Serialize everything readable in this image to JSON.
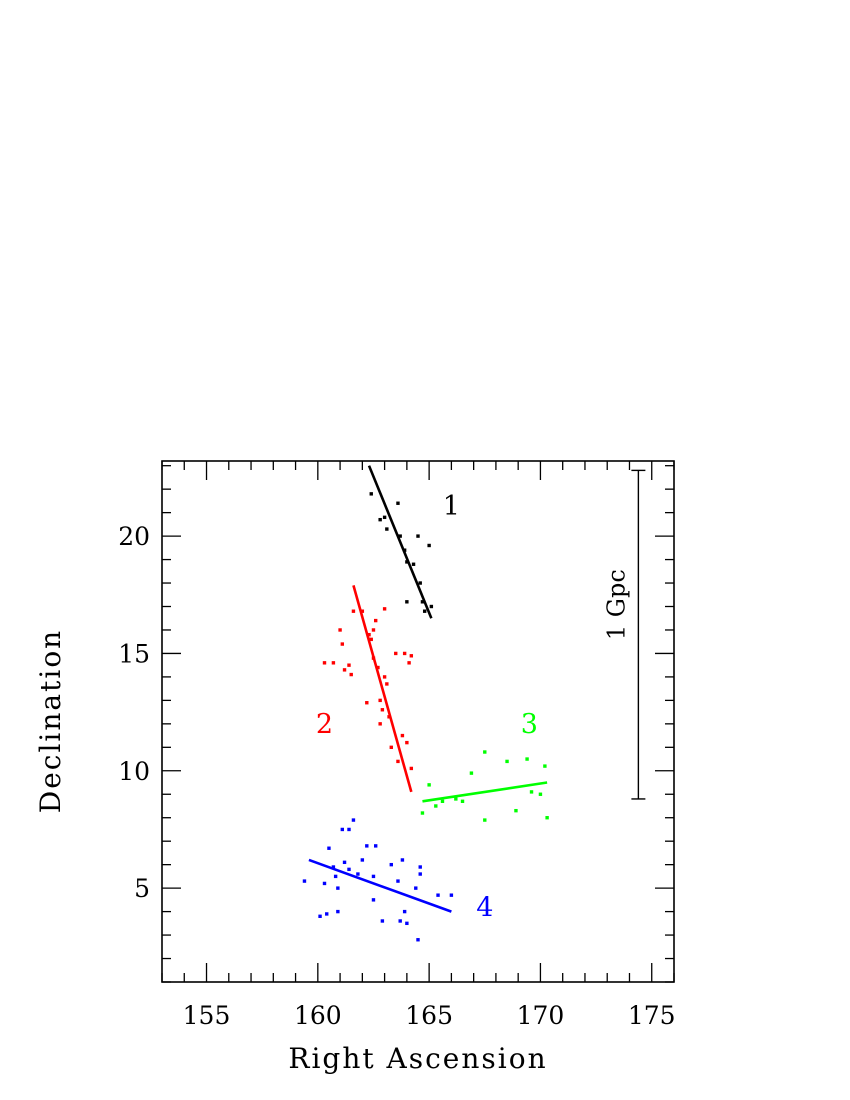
{
  "chart_data": {
    "type": "scatter",
    "xlabel": "Right Ascension",
    "ylabel": "Declination",
    "xlim": [
      153,
      176
    ],
    "ylim": [
      1,
      23.2
    ],
    "x_ticks": [
      155,
      160,
      165,
      170,
      175
    ],
    "y_ticks": [
      5,
      10,
      15,
      20
    ],
    "grid": false,
    "series": [
      {
        "name": "1",
        "color": "#000000",
        "points": [
          [
            162.4,
            21.8
          ],
          [
            162.8,
            20.7
          ],
          [
            163.0,
            20.8
          ],
          [
            163.1,
            20.3
          ],
          [
            163.6,
            21.4
          ],
          [
            163.7,
            20.0
          ],
          [
            163.9,
            19.4
          ],
          [
            164.0,
            18.9
          ],
          [
            164.3,
            18.8
          ],
          [
            164.5,
            20.0
          ],
          [
            164.6,
            18.0
          ],
          [
            164.0,
            17.2
          ],
          [
            164.7,
            17.2
          ],
          [
            164.8,
            16.8
          ],
          [
            165.0,
            19.6
          ],
          [
            165.1,
            17.0
          ]
        ],
        "fit": [
          [
            162.3,
            23.0
          ],
          [
            165.1,
            16.5
          ]
        ],
        "label": "1",
        "label_pos": [
          166.0,
          20.9
        ]
      },
      {
        "name": "2",
        "color": "#ff0000",
        "points": [
          [
            160.3,
            14.6
          ],
          [
            160.7,
            14.6
          ],
          [
            161.0,
            16.0
          ],
          [
            161.1,
            15.4
          ],
          [
            161.2,
            14.3
          ],
          [
            161.4,
            14.5
          ],
          [
            161.5,
            14.1
          ],
          [
            161.6,
            16.8
          ],
          [
            162.0,
            16.8
          ],
          [
            162.2,
            12.9
          ],
          [
            162.3,
            15.8
          ],
          [
            162.4,
            15.6
          ],
          [
            162.5,
            16.0
          ],
          [
            162.6,
            16.4
          ],
          [
            162.7,
            14.4
          ],
          [
            162.8,
            13.0
          ],
          [
            162.8,
            12.0
          ],
          [
            162.9,
            12.6
          ],
          [
            163.0,
            14.0
          ],
          [
            163.0,
            16.9
          ],
          [
            163.1,
            13.7
          ],
          [
            163.2,
            12.3
          ],
          [
            163.3,
            11.0
          ],
          [
            163.5,
            15.0
          ],
          [
            163.6,
            10.4
          ],
          [
            163.8,
            11.5
          ],
          [
            163.9,
            15.0
          ],
          [
            164.0,
            11.2
          ],
          [
            164.1,
            14.6
          ],
          [
            164.2,
            10.1
          ],
          [
            164.2,
            14.9
          ],
          [
            162.5,
            14.8
          ]
        ],
        "fit": [
          [
            161.6,
            17.9
          ],
          [
            164.2,
            9.1
          ]
        ],
        "label": "2",
        "label_pos": [
          160.3,
          11.6
        ]
      },
      {
        "name": "3",
        "color": "#00ff00",
        "points": [
          [
            164.7,
            8.2
          ],
          [
            165.0,
            9.4
          ],
          [
            165.3,
            8.5
          ],
          [
            165.6,
            8.7
          ],
          [
            166.2,
            8.8
          ],
          [
            166.5,
            8.7
          ],
          [
            166.9,
            9.9
          ],
          [
            167.5,
            10.8
          ],
          [
            167.5,
            7.9
          ],
          [
            168.5,
            10.4
          ],
          [
            168.9,
            8.3
          ],
          [
            169.4,
            10.5
          ],
          [
            169.6,
            9.1
          ],
          [
            170.0,
            9.0
          ],
          [
            170.2,
            10.2
          ],
          [
            170.3,
            8.0
          ]
        ],
        "fit": [
          [
            164.7,
            8.7
          ],
          [
            170.3,
            9.5
          ]
        ],
        "label": "3",
        "label_pos": [
          169.5,
          11.6
        ]
      },
      {
        "name": "4",
        "color": "#0000ff",
        "points": [
          [
            159.4,
            5.3
          ],
          [
            160.1,
            3.8
          ],
          [
            160.3,
            5.2
          ],
          [
            160.4,
            3.9
          ],
          [
            160.5,
            6.7
          ],
          [
            160.7,
            5.9
          ],
          [
            160.8,
            5.5
          ],
          [
            160.9,
            5.0
          ],
          [
            160.9,
            4.0
          ],
          [
            161.1,
            7.5
          ],
          [
            161.2,
            6.1
          ],
          [
            161.4,
            5.8
          ],
          [
            161.4,
            7.5
          ],
          [
            161.6,
            7.9
          ],
          [
            161.8,
            5.6
          ],
          [
            162.0,
            6.2
          ],
          [
            162.2,
            6.8
          ],
          [
            162.5,
            5.5
          ],
          [
            162.6,
            6.8
          ],
          [
            162.5,
            4.5
          ],
          [
            162.9,
            3.6
          ],
          [
            163.3,
            6.0
          ],
          [
            163.6,
            5.3
          ],
          [
            163.7,
            3.6
          ],
          [
            163.8,
            6.2
          ],
          [
            163.9,
            4.0
          ],
          [
            164.0,
            3.5
          ],
          [
            164.4,
            5.0
          ],
          [
            164.5,
            2.8
          ],
          [
            164.6,
            5.9
          ],
          [
            164.6,
            5.6
          ],
          [
            165.4,
            4.7
          ],
          [
            166.0,
            4.7
          ]
        ],
        "fit": [
          [
            159.6,
            6.2
          ],
          [
            166.0,
            4.0
          ]
        ],
        "label": "4",
        "label_pos": [
          167.5,
          3.8
        ]
      }
    ],
    "scale_bar": {
      "label": "1 Gpc",
      "x": 174.4,
      "y_range": [
        8.8,
        22.8
      ]
    }
  }
}
